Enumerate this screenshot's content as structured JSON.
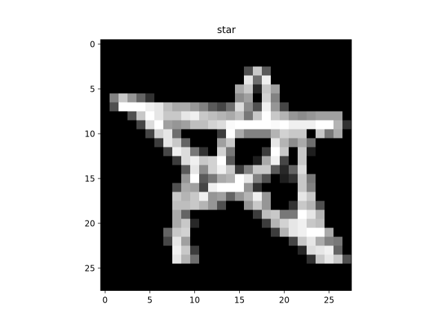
{
  "chart_data": {
    "type": "heatmap",
    "title": "star",
    "xlabel": "",
    "ylabel": "",
    "colormap": "gray",
    "value_range": [
      0,
      255
    ],
    "x_ticks": [
      0,
      5,
      10,
      15,
      20,
      25
    ],
    "y_ticks": [
      0,
      5,
      10,
      15,
      20,
      25
    ],
    "grid": false,
    "rows": 28,
    "cols": 28,
    "pixels": [
      [
        0,
        0,
        0,
        0,
        0,
        0,
        0,
        0,
        0,
        0,
        0,
        0,
        0,
        0,
        0,
        0,
        0,
        0,
        0,
        0,
        0,
        0,
        0,
        0,
        0,
        0,
        0,
        0
      ],
      [
        0,
        0,
        0,
        0,
        0,
        0,
        0,
        0,
        0,
        0,
        0,
        0,
        0,
        0,
        0,
        0,
        0,
        0,
        0,
        0,
        0,
        0,
        0,
        0,
        0,
        0,
        0,
        0
      ],
      [
        0,
        0,
        0,
        0,
        0,
        0,
        0,
        0,
        0,
        0,
        0,
        0,
        0,
        0,
        0,
        0,
        0,
        0,
        0,
        0,
        0,
        0,
        0,
        0,
        0,
        0,
        0,
        0
      ],
      [
        0,
        0,
        0,
        0,
        0,
        0,
        0,
        0,
        0,
        0,
        0,
        0,
        0,
        0,
        0,
        0,
        80,
        200,
        90,
        0,
        0,
        0,
        0,
        0,
        0,
        0,
        0,
        0
      ],
      [
        0,
        0,
        0,
        0,
        0,
        0,
        0,
        0,
        0,
        0,
        0,
        0,
        0,
        0,
        0,
        0,
        230,
        110,
        240,
        0,
        0,
        0,
        0,
        0,
        0,
        0,
        0,
        0
      ],
      [
        0,
        0,
        0,
        0,
        0,
        0,
        0,
        0,
        0,
        0,
        0,
        0,
        0,
        0,
        0,
        170,
        200,
        40,
        200,
        160,
        0,
        0,
        0,
        0,
        0,
        0,
        0,
        0
      ],
      [
        0,
        130,
        200,
        150,
        100,
        50,
        0,
        0,
        0,
        0,
        0,
        0,
        0,
        0,
        0,
        140,
        160,
        0,
        210,
        130,
        0,
        0,
        0,
        0,
        0,
        0,
        0,
        0
      ],
      [
        0,
        80,
        255,
        255,
        255,
        240,
        230,
        190,
        170,
        170,
        150,
        130,
        90,
        70,
        110,
        220,
        140,
        80,
        240,
        150,
        70,
        0,
        0,
        0,
        0,
        0,
        0,
        0
      ],
      [
        0,
        0,
        0,
        80,
        200,
        255,
        230,
        200,
        200,
        230,
        240,
        200,
        190,
        180,
        170,
        190,
        120,
        200,
        255,
        200,
        180,
        150,
        140,
        150,
        160,
        160,
        160,
        0
      ],
      [
        0,
        0,
        0,
        0,
        70,
        220,
        255,
        160,
        150,
        160,
        190,
        190,
        210,
        220,
        250,
        255,
        255,
        255,
        255,
        250,
        255,
        240,
        240,
        240,
        255,
        255,
        180,
        50
      ],
      [
        0,
        0,
        0,
        0,
        0,
        70,
        210,
        230,
        110,
        0,
        0,
        0,
        0,
        60,
        255,
        170,
        130,
        130,
        130,
        180,
        210,
        200,
        200,
        0,
        200,
        120,
        170,
        0
      ],
      [
        0,
        0,
        0,
        0,
        0,
        0,
        60,
        230,
        200,
        100,
        0,
        0,
        0,
        160,
        200,
        0,
        0,
        0,
        0,
        230,
        180,
        140,
        170,
        110,
        0,
        0,
        0,
        0
      ],
      [
        0,
        0,
        0,
        0,
        0,
        0,
        0,
        70,
        240,
        220,
        120,
        50,
        0,
        210,
        120,
        0,
        0,
        0,
        60,
        255,
        200,
        0,
        200,
        30,
        0,
        0,
        0,
        0
      ],
      [
        0,
        0,
        0,
        0,
        0,
        0,
        0,
        0,
        60,
        220,
        240,
        200,
        210,
        255,
        90,
        0,
        0,
        30,
        170,
        240,
        70,
        0,
        200,
        0,
        0,
        0,
        0,
        0
      ],
      [
        0,
        0,
        0,
        0,
        0,
        0,
        0,
        0,
        0,
        90,
        230,
        140,
        210,
        240,
        200,
        60,
        130,
        200,
        200,
        90,
        40,
        100,
        220,
        0,
        0,
        0,
        0,
        0
      ],
      [
        0,
        0,
        0,
        0,
        0,
        0,
        0,
        0,
        0,
        150,
        255,
        90,
        120,
        170,
        180,
        255,
        230,
        130,
        80,
        0,
        30,
        50,
        200,
        120,
        0,
        0,
        0,
        0
      ],
      [
        0,
        0,
        0,
        0,
        0,
        0,
        0,
        0,
        80,
        170,
        160,
        70,
        240,
        255,
        255,
        255,
        150,
        50,
        0,
        0,
        0,
        0,
        200,
        130,
        0,
        0,
        0,
        0
      ],
      [
        0,
        0,
        0,
        0,
        0,
        0,
        0,
        0,
        200,
        180,
        200,
        240,
        150,
        160,
        100,
        150,
        180,
        240,
        150,
        0,
        0,
        0,
        230,
        200,
        0,
        0,
        0,
        0
      ],
      [
        0,
        0,
        0,
        0,
        0,
        0,
        0,
        0,
        190,
        190,
        200,
        180,
        150,
        80,
        0,
        0,
        150,
        200,
        150,
        0,
        0,
        50,
        200,
        180,
        80,
        0,
        0,
        0
      ],
      [
        0,
        0,
        0,
        0,
        0,
        0,
        0,
        0,
        170,
        100,
        0,
        0,
        0,
        0,
        0,
        0,
        0,
        60,
        190,
        200,
        120,
        120,
        255,
        230,
        180,
        0,
        0,
        0
      ],
      [
        0,
        0,
        0,
        0,
        0,
        0,
        0,
        0,
        170,
        200,
        40,
        0,
        0,
        0,
        0,
        0,
        0,
        0,
        60,
        180,
        210,
        230,
        240,
        200,
        190,
        0,
        0,
        0
      ],
      [
        0,
        0,
        0,
        0,
        0,
        0,
        0,
        100,
        200,
        210,
        0,
        0,
        0,
        0,
        0,
        0,
        0,
        0,
        0,
        60,
        180,
        230,
        240,
        255,
        255,
        170,
        0,
        0
      ],
      [
        0,
        0,
        0,
        0,
        0,
        0,
        0,
        70,
        230,
        160,
        0,
        0,
        0,
        0,
        0,
        0,
        0,
        0,
        0,
        0,
        0,
        70,
        200,
        230,
        170,
        130,
        120,
        0
      ],
      [
        0,
        0,
        0,
        0,
        0,
        0,
        0,
        0,
        240,
        200,
        60,
        0,
        0,
        0,
        0,
        0,
        0,
        0,
        0,
        0,
        0,
        0,
        40,
        220,
        230,
        240,
        100,
        0
      ],
      [
        0,
        0,
        0,
        0,
        0,
        0,
        0,
        0,
        230,
        180,
        110,
        0,
        0,
        0,
        0,
        0,
        0,
        0,
        0,
        0,
        0,
        0,
        0,
        50,
        200,
        230,
        200,
        80
      ],
      [
        0,
        0,
        0,
        0,
        0,
        0,
        0,
        0,
        0,
        0,
        0,
        0,
        0,
        0,
        0,
        0,
        0,
        0,
        0,
        0,
        0,
        0,
        0,
        0,
        0,
        0,
        0,
        0
      ],
      [
        0,
        0,
        0,
        0,
        0,
        0,
        0,
        0,
        0,
        0,
        0,
        0,
        0,
        0,
        0,
        0,
        0,
        0,
        0,
        0,
        0,
        0,
        0,
        0,
        0,
        0,
        0,
        0
      ],
      [
        0,
        0,
        0,
        0,
        0,
        0,
        0,
        0,
        0,
        0,
        0,
        0,
        0,
        0,
        0,
        0,
        0,
        0,
        0,
        0,
        0,
        0,
        0,
        0,
        0,
        0,
        0,
        0
      ]
    ]
  }
}
